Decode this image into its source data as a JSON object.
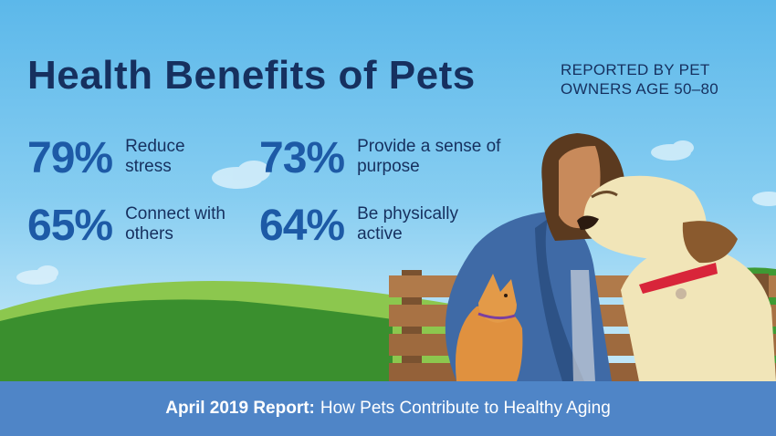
{
  "header": {
    "title": "Health Benefits of Pets",
    "subtitle": "REPORTED BY PET OWNERS AGE 50–80"
  },
  "stats": [
    {
      "percent": "79%",
      "label": "Reduce stress"
    },
    {
      "percent": "73%",
      "label": "Provide a sense of purpose"
    },
    {
      "percent": "65%",
      "label": "Connect with others"
    },
    {
      "percent": "64%",
      "label": "Be physically active"
    }
  ],
  "footer": {
    "report_label": "April 2019 Report:",
    "report_title": "How Pets Contribute to Healthy Aging"
  },
  "colors": {
    "sky": "#6cc3ee",
    "title": "#16305f",
    "stat_number": "#1d5aa6",
    "footer_band": "#4f85c7",
    "grass": "#3a8f2e"
  },
  "illustration": {
    "icons": [
      "cloud-icon",
      "hill-icon",
      "bench-icon",
      "person-icon",
      "dog-icon",
      "cat-icon"
    ]
  }
}
